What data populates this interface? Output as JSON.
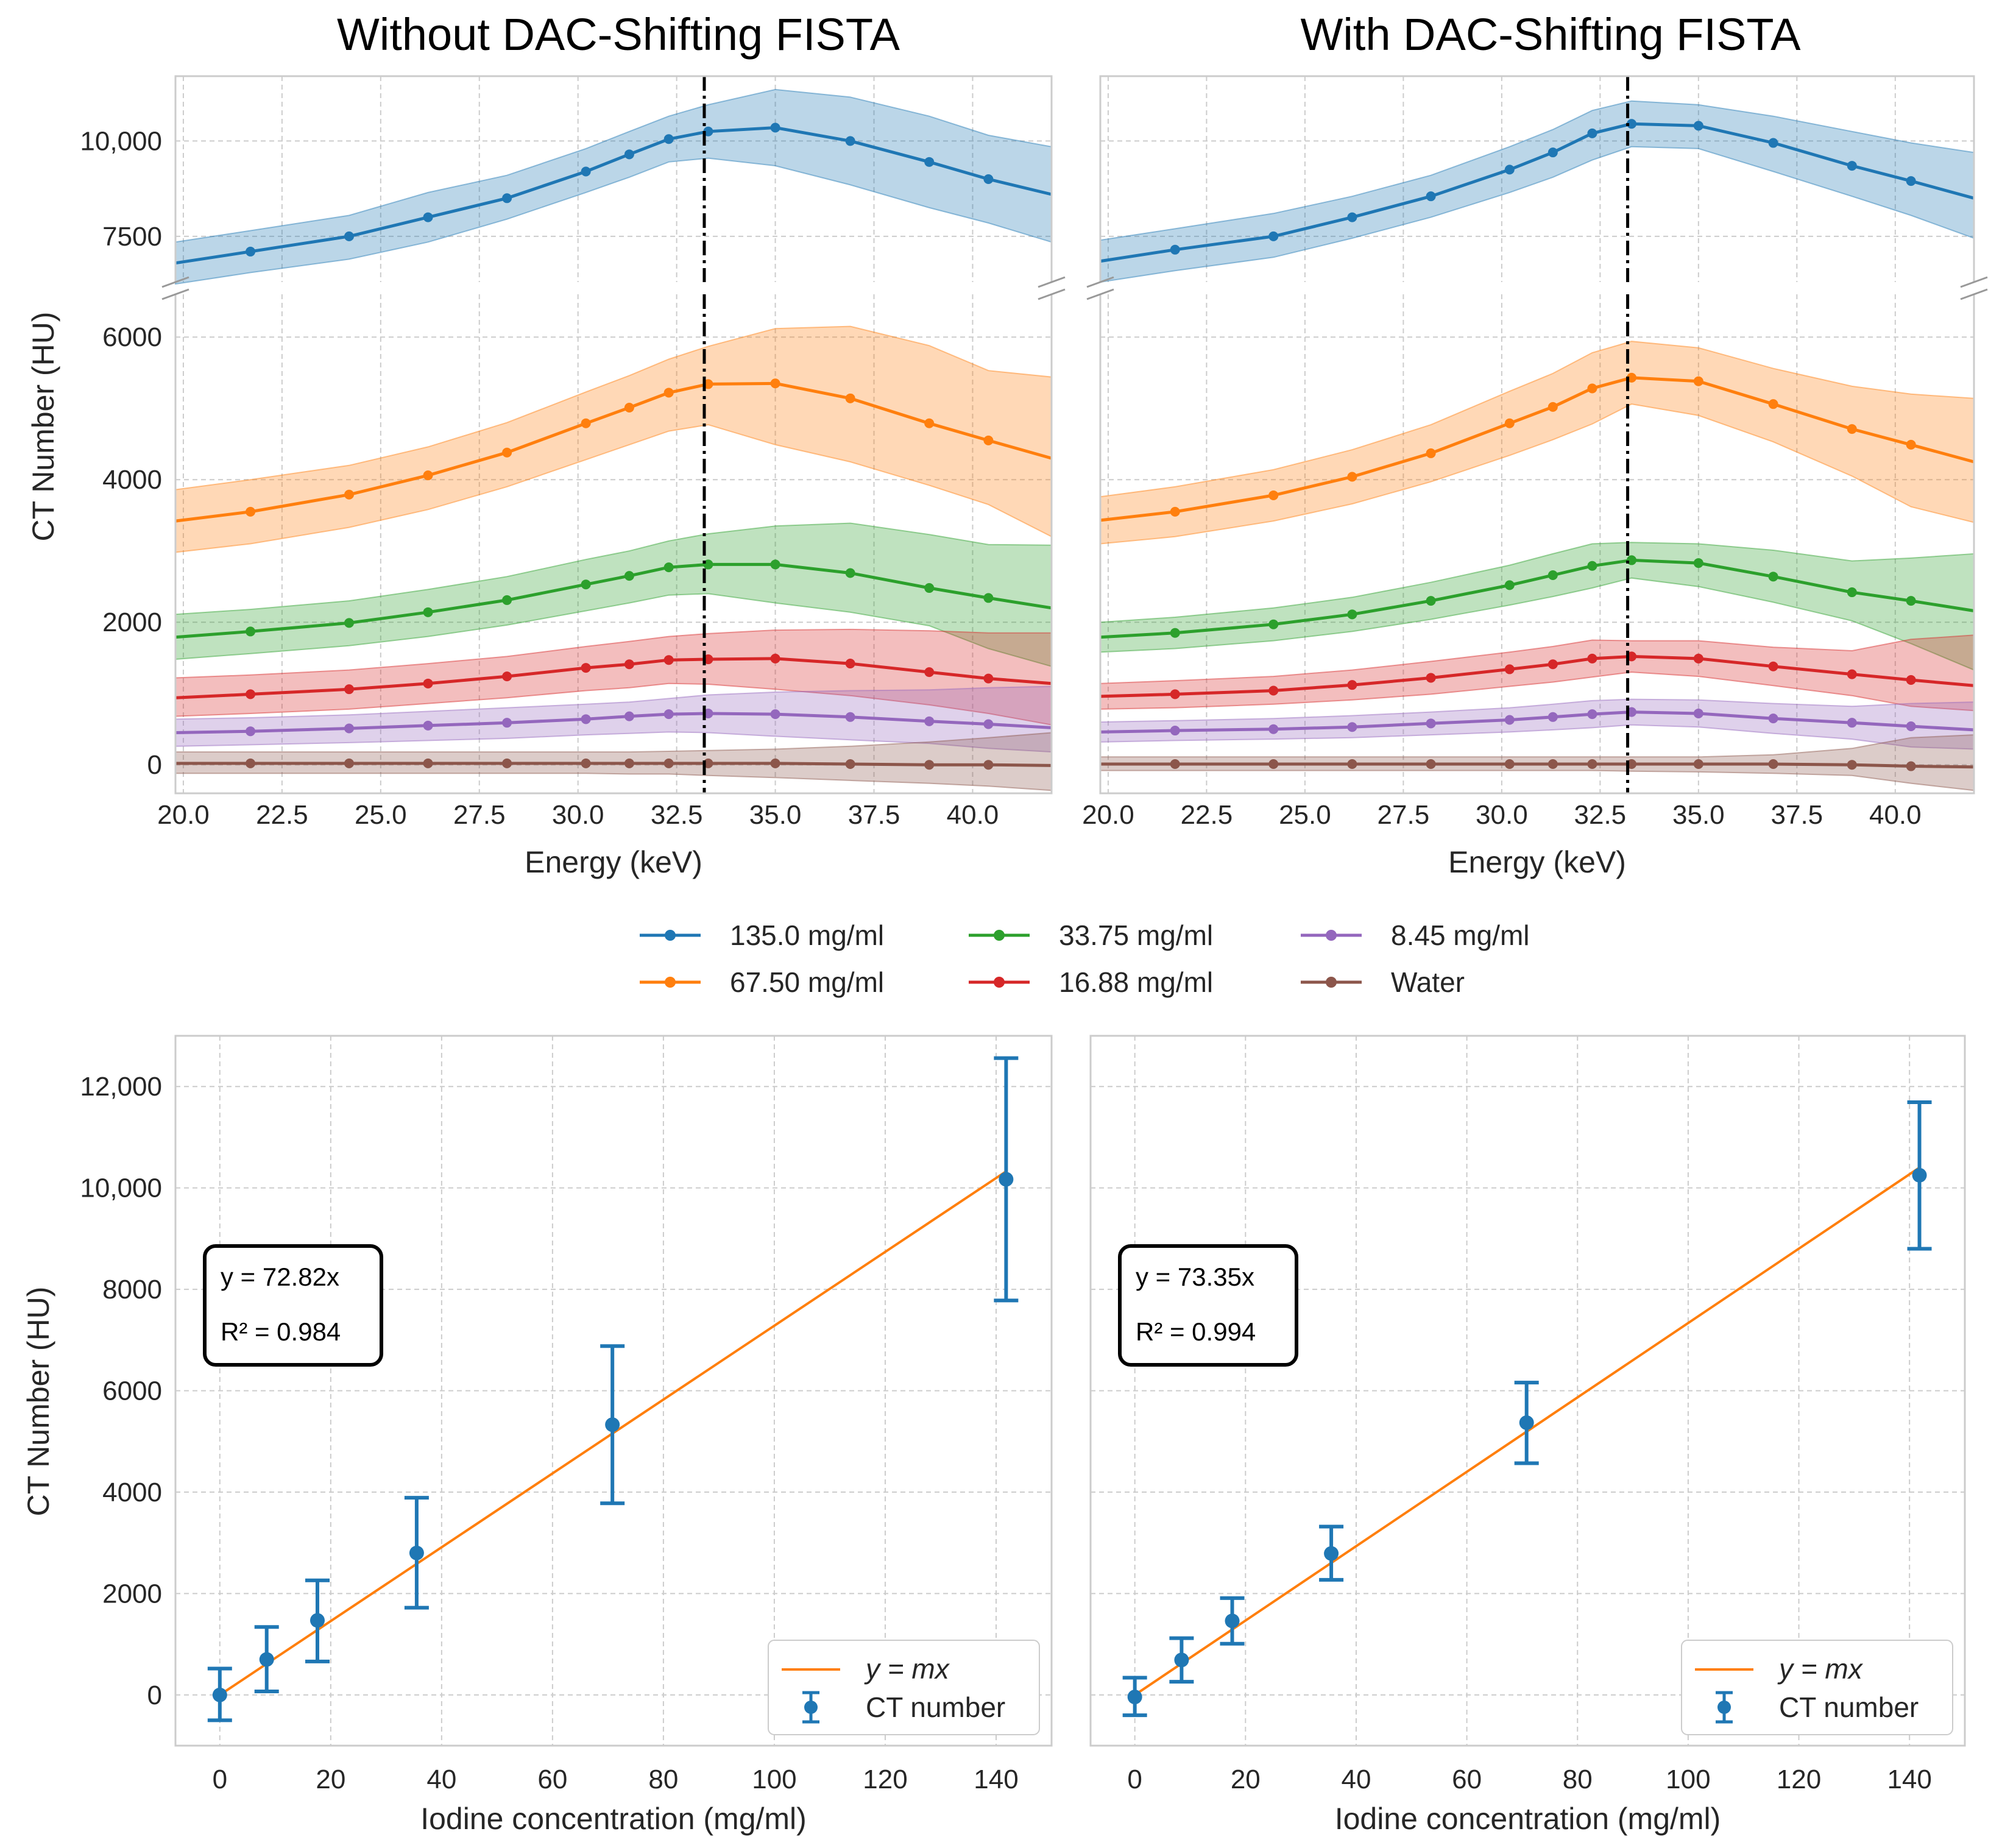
{
  "chart_data": [
    {
      "type": "line",
      "title": "Without DAC-Shifting FISTA",
      "xlabel": "Energy (keV)",
      "ylabel": "CT Number (HU)",
      "xlim": [
        19.8,
        42.0
      ],
      "ylim_lower": [
        -400,
        6600
      ],
      "ylim_upper": [
        6300,
        11700
      ],
      "xticks": [
        "20.0",
        "22.5",
        "25.0",
        "27.5",
        "30.0",
        "32.5",
        "35.0",
        "37.5",
        "40.0"
      ],
      "yticks_lower": [
        "0",
        "2000",
        "4000",
        "6000"
      ],
      "yticks_upper": [
        "7500",
        "10,000"
      ],
      "k_edge_line": 33.2,
      "x": [
        19.8,
        21.7,
        24.2,
        26.2,
        28.2,
        30.2,
        31.3,
        32.3,
        33.3,
        35.0,
        36.9,
        38.9,
        40.4,
        42.0
      ],
      "series": [
        {
          "name": "135.0 mg/ml",
          "color": "#1f77b4",
          "values": [
            6800,
            7100,
            7500,
            8000,
            8500,
            9200,
            9650,
            10050,
            10250,
            10350,
            10000,
            9450,
            9000,
            8600
          ],
          "lower": [
            6250,
            6550,
            6900,
            7350,
            7950,
            8650,
            9050,
            9450,
            9550,
            9350,
            8850,
            8250,
            7850,
            7350
          ],
          "upper": [
            7350,
            7650,
            8050,
            8650,
            9100,
            9800,
            10250,
            10650,
            10950,
            11350,
            11150,
            10650,
            10150,
            9850
          ]
        },
        {
          "name": "67.50 mg/ml",
          "color": "#ff7f0e",
          "values": [
            3420,
            3550,
            3790,
            4060,
            4380,
            4790,
            5010,
            5220,
            5340,
            5350,
            5140,
            4790,
            4550,
            4300
          ],
          "lower": [
            2980,
            3100,
            3330,
            3580,
            3900,
            4280,
            4490,
            4680,
            4770,
            4490,
            4250,
            3920,
            3650,
            3200
          ],
          "upper": [
            3860,
            4000,
            4200,
            4460,
            4800,
            5230,
            5460,
            5690,
            5870,
            6120,
            6150,
            5880,
            5530,
            5440
          ]
        },
        {
          "name": "33.75 mg/ml",
          "color": "#2ca02c",
          "values": [
            1790,
            1870,
            1990,
            2140,
            2310,
            2530,
            2650,
            2770,
            2810,
            2810,
            2690,
            2480,
            2340,
            2200
          ],
          "lower": [
            1480,
            1560,
            1670,
            1800,
            1960,
            2160,
            2270,
            2380,
            2400,
            2270,
            2140,
            1950,
            1630,
            1380
          ],
          "upper": [
            2110,
            2180,
            2300,
            2460,
            2640,
            2880,
            3000,
            3140,
            3240,
            3350,
            3390,
            3230,
            3090,
            3080
          ]
        },
        {
          "name": "16.88 mg/ml",
          "color": "#d62728",
          "values": [
            940,
            990,
            1060,
            1140,
            1240,
            1360,
            1410,
            1470,
            1480,
            1490,
            1420,
            1300,
            1210,
            1140
          ],
          "lower": [
            680,
            720,
            780,
            860,
            940,
            1040,
            1080,
            1140,
            1130,
            1060,
            970,
            840,
            720,
            560
          ],
          "upper": [
            1220,
            1260,
            1330,
            1420,
            1520,
            1660,
            1730,
            1800,
            1840,
            1890,
            1900,
            1880,
            1850,
            1850
          ]
        },
        {
          "name": "8.45 mg/ml",
          "color": "#9467bd",
          "values": [
            450,
            470,
            510,
            550,
            590,
            640,
            680,
            710,
            720,
            710,
            670,
            610,
            570,
            520
          ],
          "lower": [
            260,
            280,
            310,
            340,
            370,
            420,
            440,
            460,
            450,
            400,
            350,
            300,
            230,
            180
          ],
          "upper": [
            640,
            660,
            700,
            750,
            800,
            850,
            880,
            930,
            980,
            1020,
            1040,
            1050,
            1080,
            1100
          ]
        },
        {
          "name": "Water",
          "color": "#8c564b",
          "values": [
            20,
            20,
            20,
            20,
            20,
            20,
            20,
            20,
            20,
            20,
            10,
            0,
            0,
            -10
          ],
          "lower": [
            -120,
            -120,
            -120,
            -120,
            -120,
            -120,
            -130,
            -130,
            -150,
            -180,
            -220,
            -260,
            -300,
            -360
          ],
          "upper": [
            180,
            180,
            180,
            180,
            180,
            180,
            180,
            190,
            200,
            220,
            260,
            320,
            380,
            450
          ]
        }
      ]
    },
    {
      "type": "line",
      "title": "With DAC-Shifting FISTA",
      "xlabel": "Energy (keV)",
      "ylabel": "",
      "xlim": [
        19.8,
        42.0
      ],
      "ylim_lower": [
        -400,
        6600
      ],
      "ylim_upper": [
        6300,
        11700
      ],
      "xticks": [
        "20.0",
        "22.5",
        "25.0",
        "27.5",
        "30.0",
        "32.5",
        "35.0",
        "37.5",
        "40.0"
      ],
      "k_edge_line": 33.2,
      "x": [
        19.8,
        21.7,
        24.2,
        26.2,
        28.2,
        30.2,
        31.3,
        32.3,
        33.3,
        35.0,
        36.9,
        38.9,
        40.4,
        42.0
      ],
      "series": [
        {
          "name": "135.0 mg/ml",
          "color": "#1f77b4",
          "values": [
            6850,
            7150,
            7500,
            8000,
            8550,
            9250,
            9700,
            10200,
            10450,
            10400,
            9950,
            9350,
            8950,
            8500
          ],
          "lower": [
            6300,
            6600,
            6950,
            7450,
            8000,
            8650,
            9050,
            9500,
            9850,
            9800,
            9200,
            8550,
            8050,
            7450
          ],
          "upper": [
            7400,
            7700,
            8100,
            8550,
            9100,
            9850,
            10300,
            10800,
            11050,
            10950,
            10650,
            10250,
            9950,
            9700
          ]
        },
        {
          "name": "67.50 mg/ml",
          "color": "#ff7f0e",
          "values": [
            3430,
            3550,
            3780,
            4040,
            4370,
            4790,
            5020,
            5280,
            5430,
            5380,
            5060,
            4710,
            4490,
            4250
          ],
          "lower": [
            3100,
            3200,
            3420,
            3660,
            3970,
            4340,
            4560,
            4780,
            5060,
            4900,
            4530,
            4050,
            3620,
            3400
          ],
          "upper": [
            3760,
            3900,
            4140,
            4420,
            4770,
            5240,
            5490,
            5780,
            5940,
            5850,
            5560,
            5310,
            5200,
            5140
          ]
        },
        {
          "name": "33.75 mg/ml",
          "color": "#2ca02c",
          "values": [
            1790,
            1850,
            1970,
            2110,
            2300,
            2520,
            2660,
            2790,
            2870,
            2830,
            2640,
            2420,
            2300,
            2160
          ],
          "lower": [
            1580,
            1630,
            1740,
            1870,
            2040,
            2240,
            2360,
            2480,
            2620,
            2500,
            2280,
            2020,
            1700,
            1330
          ],
          "upper": [
            2000,
            2070,
            2200,
            2350,
            2560,
            2800,
            2960,
            3100,
            3120,
            3100,
            3010,
            2860,
            2900,
            2960
          ]
        },
        {
          "name": "16.88 mg/ml",
          "color": "#d62728",
          "values": [
            960,
            990,
            1040,
            1120,
            1220,
            1340,
            1410,
            1490,
            1520,
            1490,
            1380,
            1270,
            1190,
            1110
          ],
          "lower": [
            780,
            800,
            850,
            910,
            990,
            1100,
            1160,
            1230,
            1300,
            1240,
            1110,
            970,
            820,
            760
          ],
          "upper": [
            1140,
            1180,
            1240,
            1330,
            1450,
            1580,
            1660,
            1750,
            1740,
            1740,
            1650,
            1600,
            1760,
            1820
          ]
        },
        {
          "name": "8.45 mg/ml",
          "color": "#9467bd",
          "values": [
            460,
            480,
            500,
            530,
            580,
            630,
            670,
            710,
            740,
            720,
            650,
            590,
            540,
            490
          ],
          "lower": [
            320,
            340,
            360,
            380,
            420,
            460,
            490,
            520,
            560,
            530,
            440,
            360,
            250,
            220
          ],
          "upper": [
            600,
            620,
            650,
            690,
            740,
            800,
            850,
            900,
            920,
            910,
            860,
            820,
            860,
            880
          ]
        },
        {
          "name": "Water",
          "color": "#8c564b",
          "values": [
            10,
            10,
            10,
            10,
            10,
            10,
            10,
            10,
            10,
            10,
            10,
            0,
            -20,
            -30
          ],
          "lower": [
            -80,
            -80,
            -80,
            -80,
            -80,
            -80,
            -80,
            -80,
            -90,
            -100,
            -120,
            -150,
            -260,
            -360
          ],
          "upper": [
            110,
            110,
            110,
            110,
            110,
            110,
            110,
            110,
            110,
            110,
            140,
            230,
            380,
            420
          ]
        }
      ]
    },
    {
      "type": "scatter",
      "title": "",
      "xlabel": "Iodine concentration (mg/ml)",
      "ylabel": "CT Number (HU)",
      "xlim": [
        -8,
        150
      ],
      "ylim": [
        -1000,
        13000
      ],
      "xticks": [
        "0",
        "20",
        "40",
        "60",
        "80",
        "100",
        "120",
        "140"
      ],
      "yticks": [
        "0",
        "2000",
        "4000",
        "6000",
        "8000",
        "10,000",
        "12,000"
      ],
      "x": [
        0,
        8.45,
        17.6,
        35.5,
        70.8,
        141.8
      ],
      "values": [
        0,
        700,
        1470,
        2800,
        5330,
        10170
      ],
      "err_lower": [
        -500,
        70,
        660,
        1720,
        3780,
        7780
      ],
      "err_upper": [
        520,
        1340,
        2260,
        3890,
        6880,
        12560
      ],
      "fit_slope": 72.82,
      "fit_xmax": 142,
      "box_line1": "y = 72.82x",
      "box_line2": "R² = 0.984",
      "legend": [
        "y = mx",
        "CT number"
      ]
    },
    {
      "type": "scatter",
      "title": "",
      "xlabel": "Iodine concentration (mg/ml)",
      "ylabel": "",
      "xlim": [
        -8,
        150
      ],
      "ylim": [
        -1000,
        13000
      ],
      "xticks": [
        "0",
        "20",
        "40",
        "60",
        "80",
        "100",
        "120",
        "140"
      ],
      "x": [
        0,
        8.45,
        17.6,
        35.5,
        70.8,
        141.8
      ],
      "values": [
        -40,
        690,
        1460,
        2790,
        5370,
        10250
      ],
      "err_lower": [
        -400,
        260,
        1010,
        2270,
        4570,
        8800
      ],
      "err_upper": [
        340,
        1120,
        1910,
        3320,
        6160,
        11690
      ],
      "fit_slope": 73.35,
      "fit_xmax": 142,
      "box_line1": "y = 73.35x",
      "box_line2": "R² = 0.994",
      "legend": [
        "y = mx",
        "CT number"
      ]
    }
  ],
  "legend": [
    "135.0 mg/ml",
    "67.50 mg/ml",
    "33.75 mg/ml",
    "16.88 mg/ml",
    "8.45 mg/ml",
    "Water"
  ],
  "legend_colors": [
    "#1f77b4",
    "#ff7f0e",
    "#2ca02c",
    "#d62728",
    "#9467bd",
    "#8c564b"
  ]
}
